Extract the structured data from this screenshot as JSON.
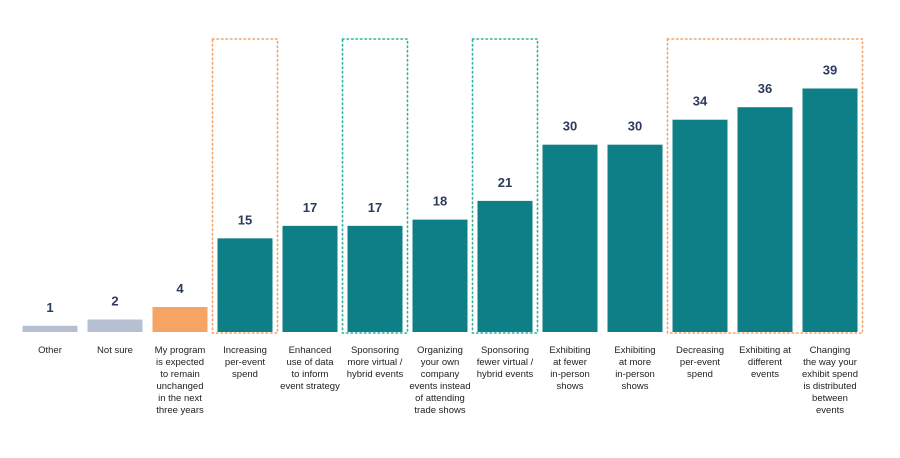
{
  "chart_data": {
    "type": "bar",
    "title": "",
    "xlabel": "",
    "ylabel": "",
    "ylim": [
      0,
      41
    ],
    "categories": [
      [
        "Other"
      ],
      [
        "Not sure"
      ],
      [
        "My program",
        "is expected",
        "to remain",
        "unchanged",
        "in the next",
        "three years"
      ],
      [
        "Increasing",
        "per-event",
        "spend"
      ],
      [
        "Enhanced",
        "use of data",
        "to inform",
        "event strategy"
      ],
      [
        "Sponsoring",
        "more virtual /",
        "hybrid events"
      ],
      [
        "Organizing",
        "your own",
        "company",
        "events instead",
        "of attending",
        "trade shows"
      ],
      [
        "Sponsoring",
        "fewer virtual /",
        "hybrid events"
      ],
      [
        "Exhibiting",
        "at fewer",
        "in-person",
        "shows"
      ],
      [
        "Exhibiting",
        "at more",
        "in-person",
        "shows"
      ],
      [
        "Decreasing",
        "per-event",
        "spend"
      ],
      [
        "Exhibiting at",
        "different",
        "events"
      ],
      [
        "Changing",
        "the way your",
        "exhibit spend",
        "is distributed",
        "between",
        "events"
      ]
    ],
    "values": [
      1,
      2,
      4,
      15,
      17,
      17,
      18,
      21,
      30,
      30,
      34,
      36,
      39
    ],
    "value_labels": [
      "1",
      "2",
      "4",
      "15",
      "17",
      "17",
      "18",
      "21",
      "30",
      "30",
      "34",
      "36",
      "39"
    ],
    "bar_colors": [
      "#b7bfd3",
      "#b7bfd3",
      "#f5a462",
      "#0e7f86",
      "#0e7f86",
      "#0e7f86",
      "#0e7f86",
      "#0e7f86",
      "#0e7f86",
      "#0e7f86",
      "#0e7f86",
      "#0e7f86",
      "#0e7f86"
    ],
    "value_label_color": "#2d3a5c",
    "highlight_groups": [
      {
        "indices": [
          3
        ],
        "style": "dotted",
        "color": "#f0a46a"
      },
      {
        "indices": [
          5
        ],
        "style": "dotted",
        "color": "#2fb39c"
      },
      {
        "indices": [
          7
        ],
        "style": "dotted",
        "color": "#2fb39c"
      },
      {
        "indices": [
          10,
          11,
          12
        ],
        "style": "dotted",
        "color": "#f0a46a"
      }
    ],
    "grid": false,
    "legend": "none"
  }
}
